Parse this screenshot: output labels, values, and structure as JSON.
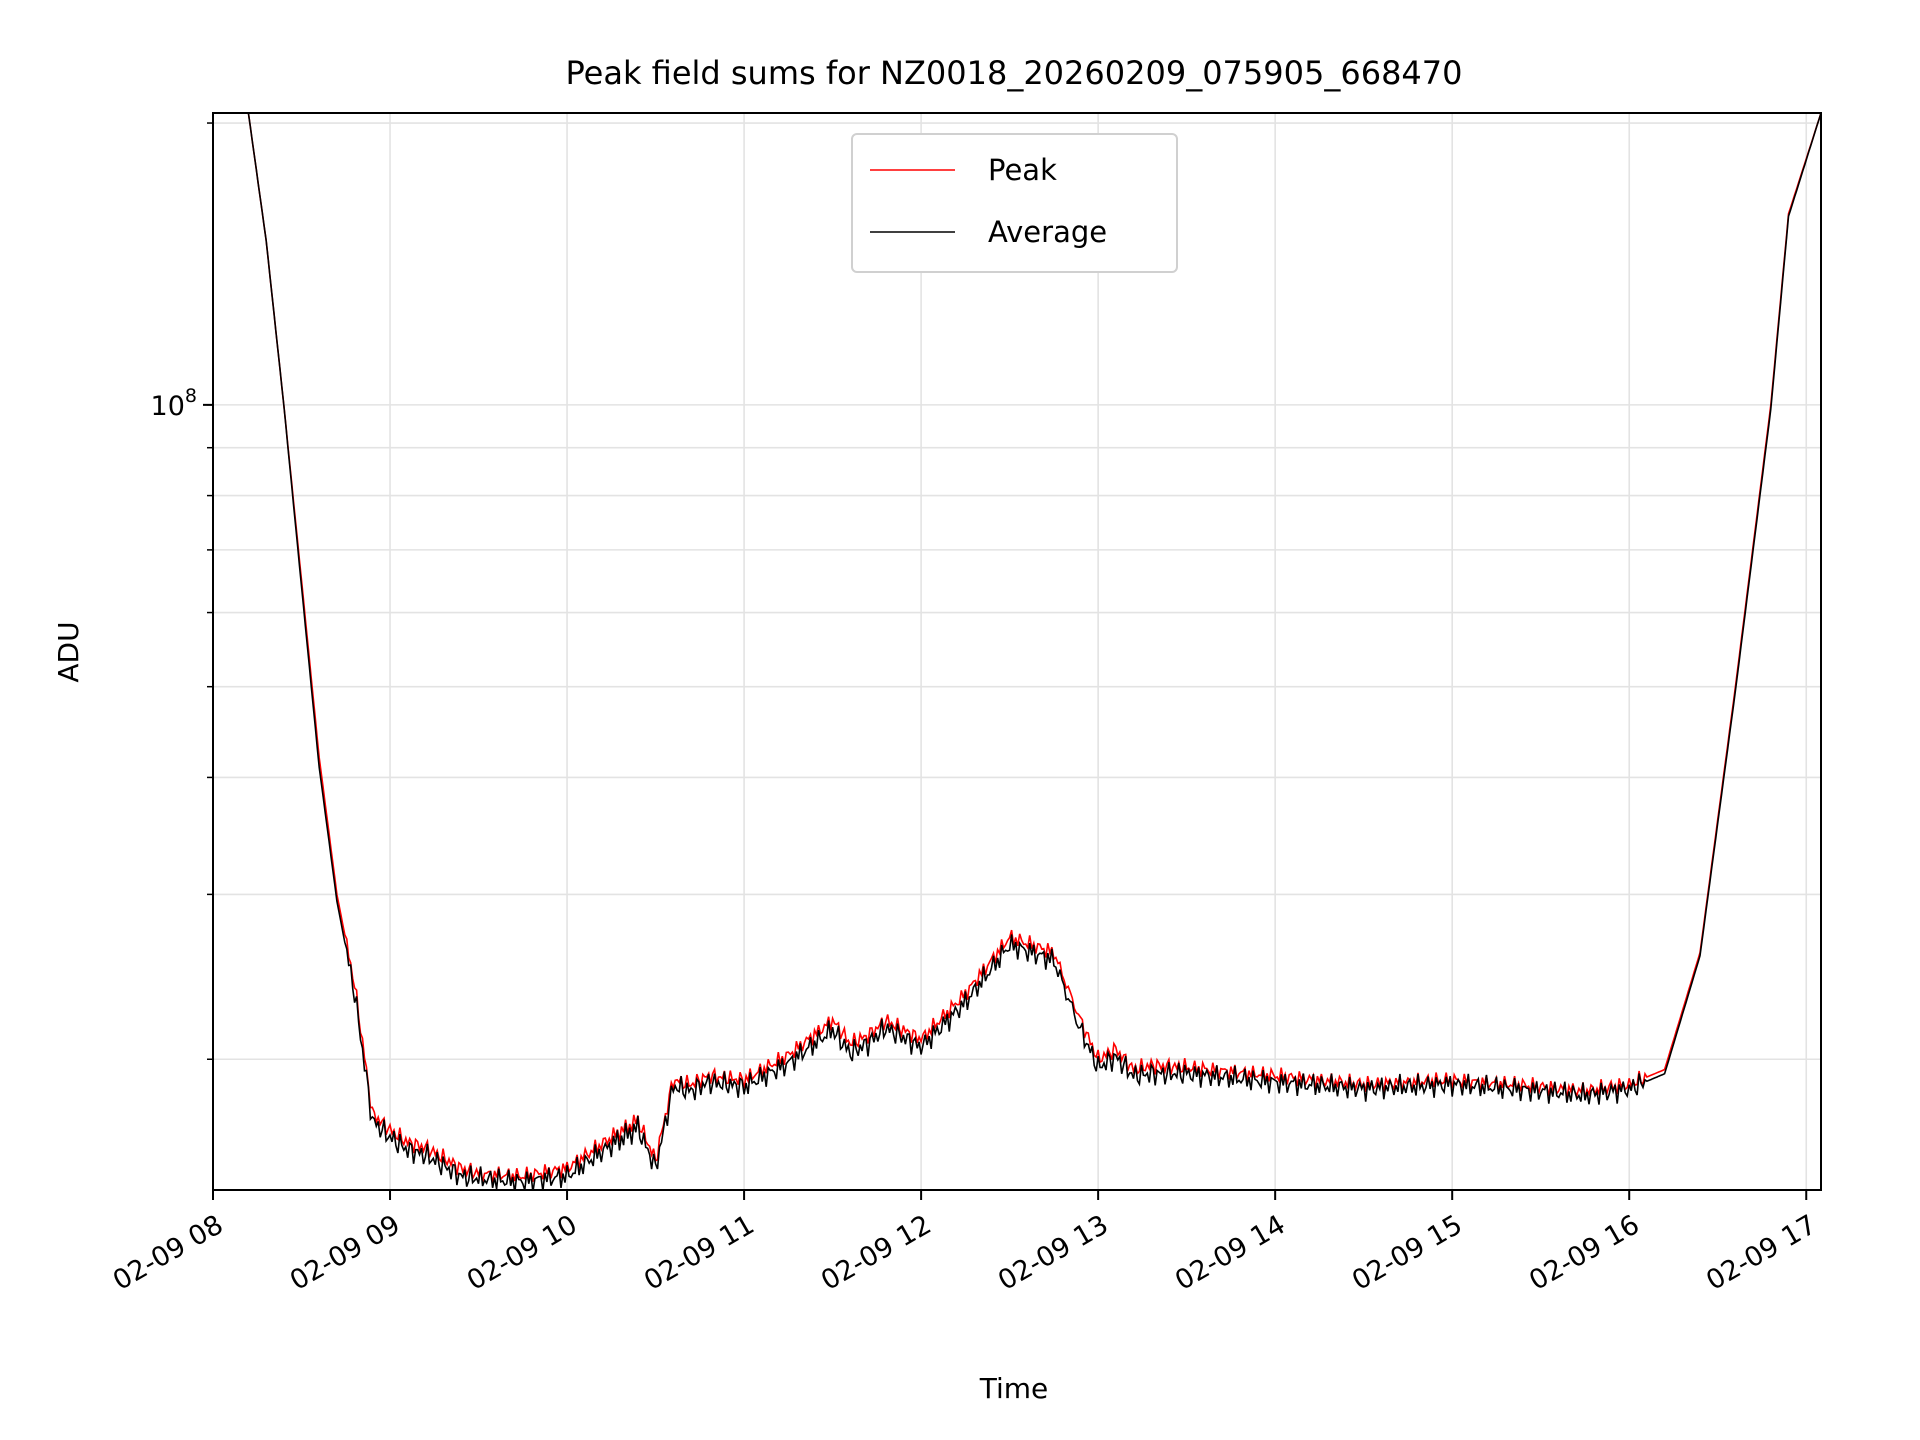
{
  "chart_data": {
    "type": "line",
    "title": "Peak field sums for NZ0018_20260209_075905_668470",
    "xlabel": "Time",
    "ylabel": "ADU",
    "xlim": [
      "02-09 08:00",
      "02-09 17:05"
    ],
    "ylim": [
      14500000,
      205000000
    ],
    "yscale": "log",
    "grid": true,
    "legend_position": "upper center",
    "x_ticks": [
      "02-09 08",
      "02-09 09",
      "02-09 10",
      "02-09 11",
      "02-09 12",
      "02-09 13",
      "02-09 14",
      "02-09 15",
      "02-09 16",
      "02-09 17"
    ],
    "y_ticks": [
      {
        "label": "10",
        "exponent": "8",
        "value": 100000000
      }
    ],
    "series": [
      {
        "name": "Peak",
        "color": "#ff0000",
        "x": [
          "02-09 08:00",
          "02-09 08:12",
          "02-09 08:18",
          "02-09 08:24",
          "02-09 08:30",
          "02-09 08:36",
          "02-09 08:42",
          "02-09 08:48",
          "02-09 08:54",
          "02-09 09:00",
          "02-09 09:06",
          "02-09 09:12",
          "02-09 09:18",
          "02-09 09:24",
          "02-09 09:30",
          "02-09 09:45",
          "02-09 10:00",
          "02-09 10:15",
          "02-09 10:24",
          "02-09 10:30",
          "02-09 10:36",
          "02-09 10:42",
          "02-09 10:48",
          "02-09 11:00",
          "02-09 11:15",
          "02-09 11:30",
          "02-09 11:36",
          "02-09 11:42",
          "02-09 11:48",
          "02-09 12:00",
          "02-09 12:15",
          "02-09 12:30",
          "02-09 12:45",
          "02-09 12:54",
          "02-09 13:00",
          "02-09 13:06",
          "02-09 13:12",
          "02-09 13:18",
          "02-09 13:30",
          "02-09 14:00",
          "02-09 14:30",
          "02-09 15:00",
          "02-09 15:30",
          "02-09 15:45",
          "02-09 16:00",
          "02-09 16:12",
          "02-09 16:24",
          "02-09 16:36",
          "02-09 16:48",
          "02-09 16:54",
          "02-09 17:05"
        ],
        "values": [
          205000000,
          205000000,
          150000000,
          100000000,
          65000000,
          42000000,
          30000000,
          24000000,
          17500000,
          16800000,
          16300000,
          16100000,
          15700000,
          15300000,
          15100000,
          15000000,
          15300000,
          16500000,
          17200000,
          15600000,
          19000000,
          18800000,
          19200000,
          19000000,
          20200000,
          22000000,
          20800000,
          21200000,
          22000000,
          21000000,
          23500000,
          27000000,
          26000000,
          22000000,
          20000000,
          20500000,
          19500000,
          19700000,
          19600000,
          19200000,
          18800000,
          19000000,
          18700000,
          18500000,
          18800000,
          19500000,
          26000000,
          50000000,
          100000000,
          160000000,
          205000000
        ]
      },
      {
        "name": "Average",
        "color": "#000000",
        "x": [
          "02-09 08:00",
          "02-09 08:12",
          "02-09 08:18",
          "02-09 08:24",
          "02-09 08:30",
          "02-09 08:36",
          "02-09 08:42",
          "02-09 08:48",
          "02-09 08:54",
          "02-09 09:00",
          "02-09 09:06",
          "02-09 09:12",
          "02-09 09:18",
          "02-09 09:24",
          "02-09 09:30",
          "02-09 09:45",
          "02-09 10:00",
          "02-09 10:15",
          "02-09 10:24",
          "02-09 10:30",
          "02-09 10:36",
          "02-09 10:42",
          "02-09 10:48",
          "02-09 11:00",
          "02-09 11:15",
          "02-09 11:30",
          "02-09 11:36",
          "02-09 11:42",
          "02-09 11:48",
          "02-09 12:00",
          "02-09 12:15",
          "02-09 12:30",
          "02-09 12:45",
          "02-09 12:54",
          "02-09 13:00",
          "02-09 13:06",
          "02-09 13:12",
          "02-09 13:18",
          "02-09 13:30",
          "02-09 14:00",
          "02-09 14:30",
          "02-09 15:00",
          "02-09 15:30",
          "02-09 15:45",
          "02-09 16:00",
          "02-09 16:12",
          "02-09 16:24",
          "02-09 16:36",
          "02-09 16:48",
          "02-09 16:54",
          "02-09 17:05"
        ],
        "values": [
          205000000,
          205000000,
          150000000,
          100000000,
          64000000,
          41000000,
          29500000,
          23500000,
          17200000,
          16500000,
          16000000,
          15800000,
          15400000,
          15000000,
          14900000,
          14800000,
          15000000,
          16200000,
          16900000,
          15300000,
          18700000,
          18500000,
          18900000,
          18700000,
          19800000,
          21500000,
          20300000,
          20800000,
          21600000,
          20600000,
          23000000,
          26500000,
          25500000,
          21500000,
          19600000,
          20100000,
          19200000,
          19300000,
          19300000,
          18900000,
          18600000,
          18800000,
          18500000,
          18300000,
          18600000,
          19300000,
          25800000,
          49500000,
          99000000,
          159000000,
          205000000
        ]
      }
    ]
  }
}
